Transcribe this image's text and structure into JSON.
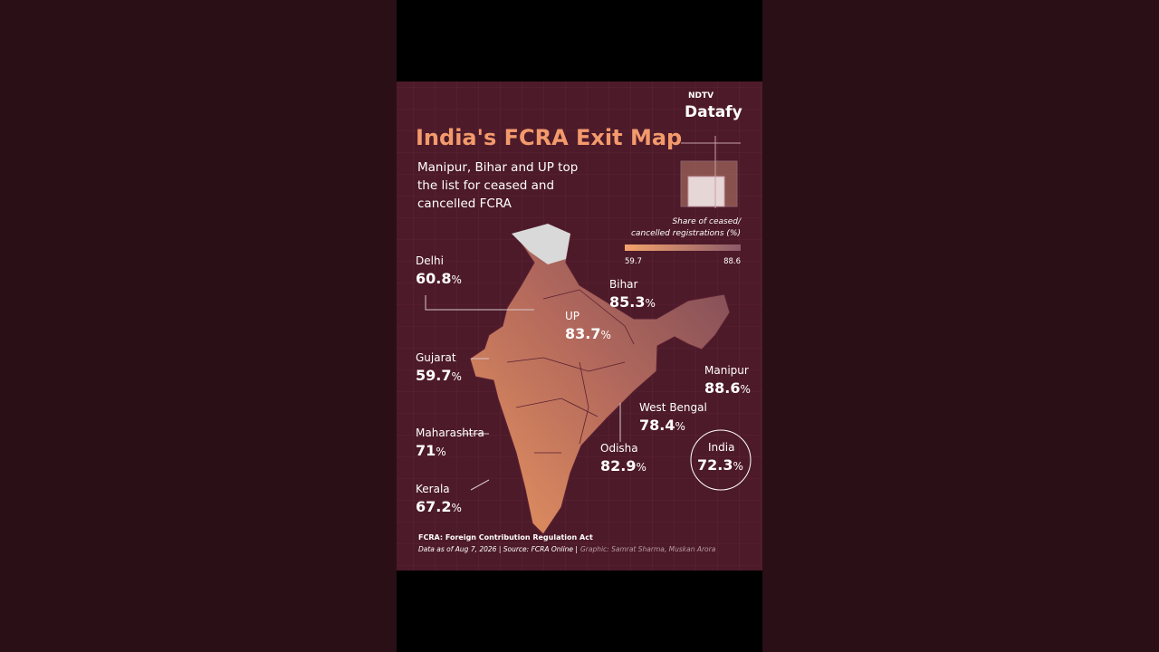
{
  "header": {
    "logo_top": "NDTV",
    "logo_bottom": "Datafy",
    "title": "India's FCRA Exit Map",
    "subtitle": [
      "Manipur, Bihar and UP top",
      "the list for ceased and",
      "cancelled FCRA"
    ]
  },
  "map": {
    "unit": "%",
    "legend": {
      "title": [
        "Share of ceased/",
        "cancelled registrations (%)"
      ],
      "min": 59.7,
      "max": 88.6
    },
    "states": [
      {
        "name": "Delhi",
        "value": 60.8
      },
      {
        "name": "Bihar",
        "value": 85.3
      },
      {
        "name": "UP",
        "value": 83.7
      },
      {
        "name": "Gujarat",
        "value": 59.7
      },
      {
        "name": "Manipur",
        "value": 88.6
      },
      {
        "name": "West Bengal",
        "value": 78.4
      },
      {
        "name": "Maharashtra",
        "value": 71
      },
      {
        "name": "Odisha",
        "value": 82.9
      },
      {
        "name": "Kerala",
        "value": 67.2
      },
      {
        "name": "India",
        "value": 72.3
      }
    ]
  },
  "footer": {
    "note": "FCRA: Foreign Contribution Regulation Act",
    "source": "Data as of Aug 7, 2026 | Source: FCRA Online |",
    "credit": "Graphic: Samrat Sharma, Muskan Arora"
  }
}
